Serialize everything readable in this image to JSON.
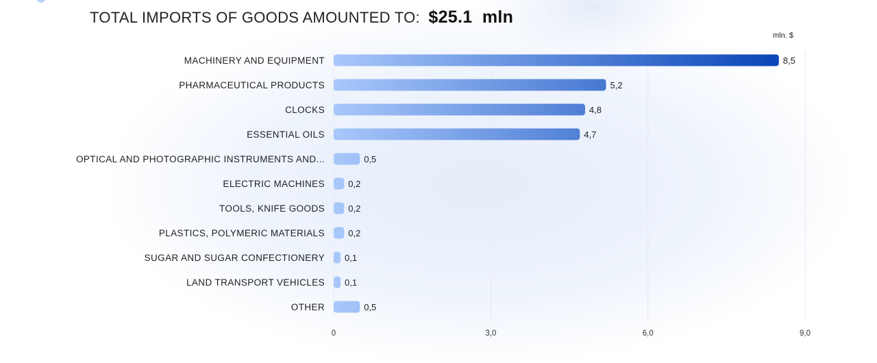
{
  "headline": {
    "lead": "TOTAL IMPORTS OF GOODS AMOUNTED TO:",
    "amount": "$25.1",
    "unit": "mln"
  },
  "colors": {
    "bar_light": "#a9c8fb",
    "bar_dark": "#0b47b8",
    "grid": "#e6e9ef"
  },
  "chart_data": {
    "type": "bar",
    "orientation": "horizontal",
    "unit_label": "mln. $",
    "categories": [
      "MACHINERY AND EQUIPMENT",
      "PHARMACEUTICAL PRODUCTS",
      "CLOCKS",
      "ESSENTIAL OILS",
      "OPTICAL AND PHOTOGRAPHIC INSTRUMENTS AND...",
      "ELECTRIC MACHINES",
      "TOOLS, KNIFE GOODS",
      "PLASTICS, POLYMERIC MATERIALS",
      "SUGAR AND SUGAR CONFECTIONERY",
      "LAND TRANSPORT VEHICLES",
      "OTHER"
    ],
    "values": [
      8.5,
      5.2,
      4.8,
      4.7,
      0.5,
      0.2,
      0.2,
      0.2,
      0.1,
      0.1,
      0.5
    ],
    "value_labels": [
      "8,5",
      "5,2",
      "4,8",
      "4,7",
      "0,5",
      "0,2",
      "0,2",
      "0,2",
      "0,1",
      "0,1",
      "0,5"
    ],
    "xlim": [
      0,
      9
    ],
    "xticks": [
      0,
      3,
      6,
      9
    ],
    "xtick_labels": [
      "0",
      "3,0",
      "6,0",
      "9,0"
    ],
    "grid": true
  }
}
